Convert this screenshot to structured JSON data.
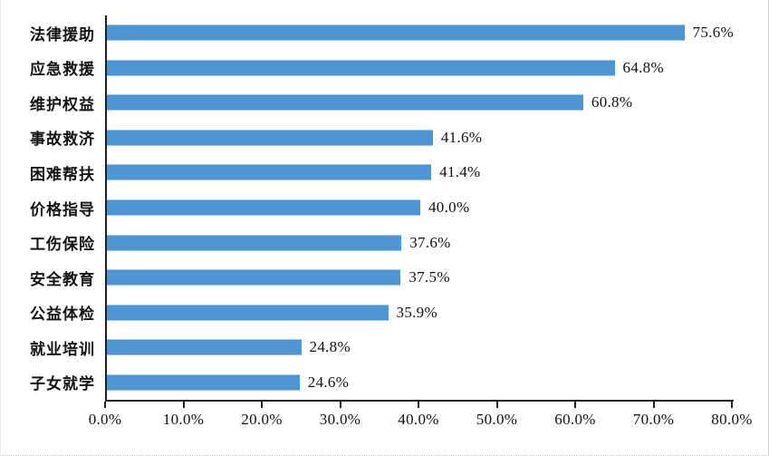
{
  "chart_data": {
    "type": "bar",
    "orientation": "horizontal",
    "title": "",
    "xlabel": "",
    "ylabel": "",
    "categories": [
      "法律援助",
      "应急救援",
      "维护权益",
      "事故救济",
      "困难帮扶",
      "价格指导",
      "工伤保险",
      "安全教育",
      "公益体检",
      "就业培训",
      "子女就学"
    ],
    "values": [
      75.6,
      64.8,
      60.8,
      41.6,
      41.4,
      40.0,
      37.6,
      37.5,
      35.9,
      24.8,
      24.6
    ],
    "value_labels": [
      "75.6%",
      "64.8%",
      "60.8%",
      "41.6%",
      "41.4%",
      "40.0%",
      "37.6%",
      "37.5%",
      "35.9%",
      "24.8%",
      "24.6%"
    ],
    "x_ticks": [
      0,
      10,
      20,
      30,
      40,
      50,
      60,
      70,
      80
    ],
    "x_tick_labels": [
      "0.0%",
      "10.0%",
      "20.0%",
      "30.0%",
      "40.0%",
      "50.0%",
      "60.0%",
      "70.0%",
      "80.0%"
    ],
    "xlim": [
      0,
      80
    ],
    "grid": false,
    "legend": "none",
    "bar_color": "#4E96D3",
    "axis_color": "#202020"
  }
}
